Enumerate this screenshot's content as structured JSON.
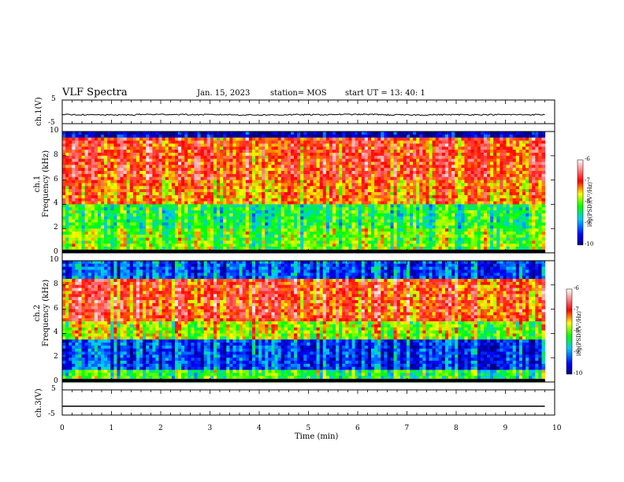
{
  "header": {
    "title": "VLF Spectra",
    "date": "Jan. 15, 2023",
    "station": "station= MOS",
    "start": "start  UT =   13: 40: 1"
  },
  "chart_data": [
    {
      "type": "line",
      "panel": "ch1-waveform",
      "ylabel": "ch.1(V)",
      "ylim": [
        -5,
        5
      ],
      "yticks": [
        "5",
        "-5"
      ],
      "x": [
        0,
        1,
        2,
        3,
        4,
        5,
        6,
        7,
        8,
        9,
        9.8
      ],
      "series": [
        {
          "values": [
            -1.2,
            -1.3,
            -1.1,
            -1.2,
            -1.3,
            -1.2,
            -1.1,
            -1.3,
            -1.2,
            -1.2,
            -1.2
          ]
        }
      ]
    },
    {
      "type": "heatmap",
      "panel": "ch1-spectrogram",
      "ylabel": "ch.1\nFrequency (kHz)",
      "ylim": [
        0,
        10
      ],
      "yticks": [
        "0",
        "2",
        "4",
        "6",
        "8",
        "10"
      ],
      "colorbar": {
        "label": "log(PSD)(V²/Hz)",
        "range": [
          -10,
          -6
        ],
        "ticks": [
          "-6",
          "-7",
          "-8",
          "-9",
          "-10"
        ]
      },
      "description_bands": [
        {
          "f_range": [
            6,
            9.5
          ],
          "level": -7.0
        },
        {
          "f_range": [
            4,
            6
          ],
          "level": -7.3
        },
        {
          "f_range": [
            2,
            4
          ],
          "level": -8.3
        },
        {
          "f_range": [
            0.3,
            2
          ],
          "level": -8.0
        }
      ]
    },
    {
      "type": "heatmap",
      "panel": "ch2-spectrogram",
      "ylabel": "ch.2\nFrequency (kHz)",
      "ylim": [
        0,
        10
      ],
      "yticks": [
        "0",
        "2",
        "4",
        "6",
        "8",
        "10"
      ],
      "colorbar": {
        "label": "log(PSD)(V²/Hz)",
        "range": [
          -10,
          -6
        ],
        "ticks": [
          "-6",
          "-7",
          "-8",
          "-9",
          "-10"
        ]
      },
      "description_bands": [
        {
          "f_range": [
            8.5,
            10
          ],
          "level": -9.2
        },
        {
          "f_range": [
            5,
            8.5
          ],
          "level": -7.0
        },
        {
          "f_range": [
            3.5,
            5
          ],
          "level": -7.8
        },
        {
          "f_range": [
            1,
            3.5
          ],
          "level": -9.3
        },
        {
          "f_range": [
            0,
            1
          ],
          "level": -8.2
        }
      ]
    },
    {
      "type": "line",
      "panel": "ch3-waveform",
      "ylabel": "ch.3(V)",
      "ylim": [
        -5,
        5
      ],
      "yticks": [
        "5",
        "-5"
      ],
      "x": [
        0,
        9.8
      ],
      "series": [
        {
          "values": [
            -1.5,
            -1.5
          ]
        }
      ]
    }
  ],
  "xaxis": {
    "label": "Time (min)",
    "ticks": [
      "0",
      "1",
      "2",
      "3",
      "4",
      "5",
      "6",
      "7",
      "8",
      "9",
      "10"
    ],
    "xlim": [
      0,
      10
    ]
  }
}
